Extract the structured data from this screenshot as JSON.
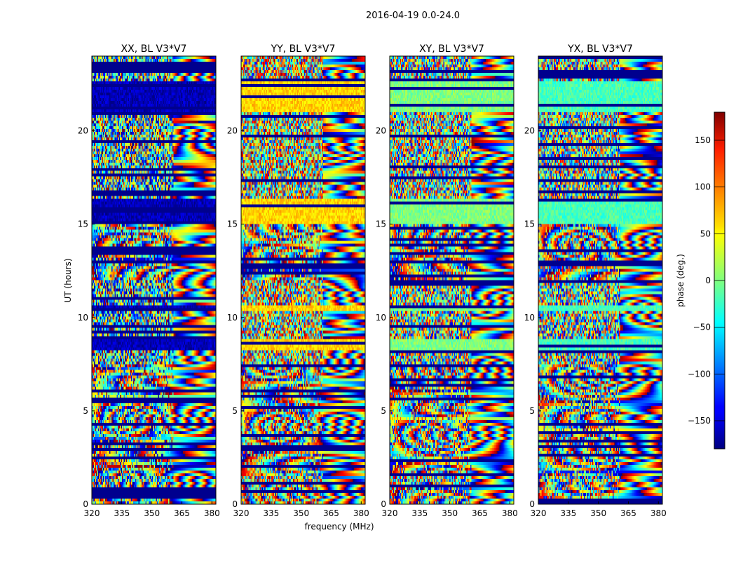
{
  "suptitle": "2016-04-19 0.0-24.0",
  "chart_data": {
    "type": "heatmap",
    "shared": {
      "xlabel": "frequency (MHz)",
      "ylabel": "UT (hours)",
      "xlim": [
        320,
        382
      ],
      "ylim": [
        0,
        24
      ],
      "xticks": [
        320,
        335,
        350,
        365,
        380
      ],
      "yticks": [
        0,
        5,
        10,
        15,
        20
      ],
      "colormap": "jet",
      "grid": false
    },
    "panels": [
      {
        "title": "XX, BL V3*V7",
        "base_phase": -160,
        "freq_break_mhz": 361
      },
      {
        "title": "YY, BL V3*V7",
        "base_phase": 60,
        "freq_break_mhz": 361
      },
      {
        "title": "XY, BL V3*V7",
        "base_phase": 0,
        "freq_break_mhz": 361
      },
      {
        "title": "YX, BL V3*V7",
        "base_phase": -20,
        "freq_break_mhz": 361
      }
    ],
    "notes": [
      "Phase appears noisy/random at most times below ~361 MHz, with striped fringe patterns above ~361 MHz.",
      "Blocks of near-constant phase (dark blue in XX) are visible around 15-16 h and 21-22 h UT.",
      "Strong smooth fringes visible around 2-7 h UT across all panels."
    ],
    "colorbar": {
      "label": "phase (deg.)",
      "range": [
        -180,
        180
      ],
      "ticks": [
        -150,
        -100,
        -50,
        0,
        50,
        100,
        150
      ],
      "tick_labels": [
        "−150",
        "−100",
        "−50",
        "0",
        "50",
        "100",
        "150"
      ]
    }
  }
}
